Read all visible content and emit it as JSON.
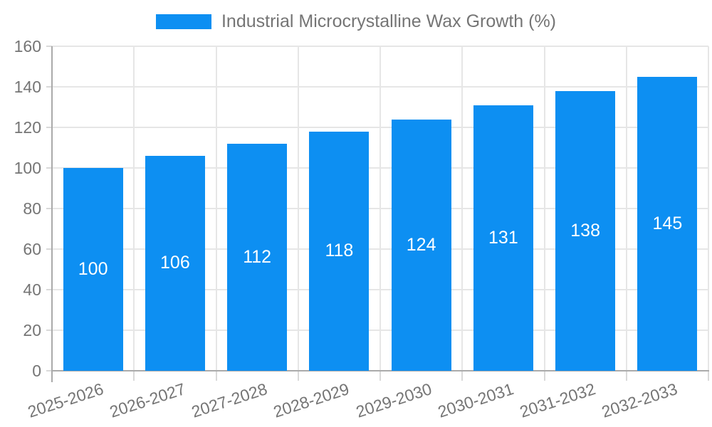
{
  "legend": {
    "label": "Industrial Microcrystalline Wax Growth (%)"
  },
  "chart_data": {
    "type": "bar",
    "title": "",
    "categories": [
      "2025-2026",
      "2026-2027",
      "2027-2028",
      "2028-2029",
      "2029-2030",
      "2030-2031",
      "2031-2032",
      "2032-2033"
    ],
    "series": [
      {
        "name": "Industrial Microcrystalline Wax Growth (%)",
        "values": [
          100,
          106,
          112,
          118,
          124,
          131,
          138,
          145
        ]
      }
    ],
    "xlabel": "",
    "ylabel": "",
    "ylim": [
      0,
      160
    ],
    "yticks": [
      0,
      20,
      40,
      60,
      80,
      100,
      120,
      140,
      160
    ],
    "grid": true,
    "legend_position": "top",
    "value_labels": "inside-center",
    "colors": {
      "bar": "#0d8ff2",
      "grid": "#e6e6e6",
      "axis": "#aaaaaa",
      "tick": "#d9d9d9",
      "axis_text": "#757575",
      "value_label_text": "#ffffff"
    }
  }
}
